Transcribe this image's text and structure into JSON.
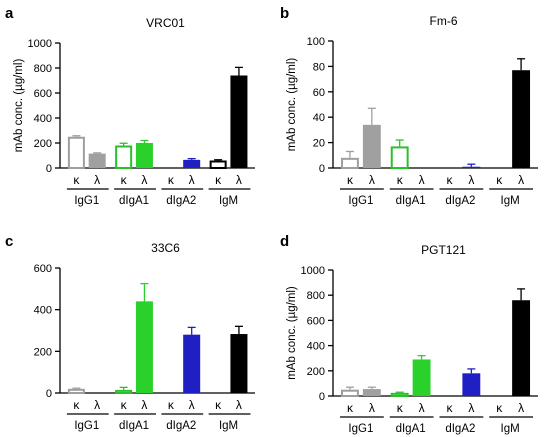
{
  "chart_data": [
    {
      "type": "bar",
      "panel_label": "a",
      "title": "VRC01",
      "ylabel": "mAb conc. (µg/ml)",
      "ylim": [
        0,
        1000
      ],
      "yticks": [
        0,
        200,
        400,
        600,
        800,
        1000
      ],
      "groups": [
        {
          "label": "IgG1",
          "bars": [
            {
              "chain": "κ",
              "value": 250,
              "error": 8,
              "style": "open",
              "color": "#9e9e9e"
            },
            {
              "chain": "λ",
              "value": 115,
              "error": 6,
              "style": "filled",
              "color": "#a0a0a0"
            }
          ]
        },
        {
          "label": "dIgA1",
          "bars": [
            {
              "chain": "κ",
              "value": 180,
              "error": 18,
              "style": "open",
              "color": "#2bbf2b"
            },
            {
              "chain": "λ",
              "value": 200,
              "error": 20,
              "style": "filled",
              "color": "#2bd12b"
            }
          ]
        },
        {
          "label": "dIgA2",
          "bars": [
            {
              "chain": "κ",
              "value": 0,
              "error": 0,
              "style": "none",
              "color": "#1f1fc4"
            },
            {
              "chain": "λ",
              "value": 65,
              "error": 10,
              "style": "filled",
              "color": "#1f1fc4"
            }
          ]
        },
        {
          "label": "IgM",
          "bars": [
            {
              "chain": "κ",
              "value": 60,
              "error": 6,
              "style": "open",
              "color": "#000000"
            },
            {
              "chain": "λ",
              "value": 740,
              "error": 65,
              "style": "filled",
              "color": "#000000"
            }
          ]
        }
      ]
    },
    {
      "type": "bar",
      "panel_label": "b",
      "title": "Fm-6",
      "ylabel": "mAb conc. (µg/ml)",
      "ylim": [
        0,
        100
      ],
      "yticks": [
        0,
        20,
        40,
        60,
        80,
        100
      ],
      "groups": [
        {
          "label": "IgG1",
          "bars": [
            {
              "chain": "κ",
              "value": 8,
              "error": 5,
              "style": "open",
              "color": "#9e9e9e"
            },
            {
              "chain": "λ",
              "value": 34,
              "error": 13,
              "style": "filled",
              "color": "#a0a0a0"
            }
          ]
        },
        {
          "label": "dIgA1",
          "bars": [
            {
              "chain": "κ",
              "value": 17,
              "error": 5,
              "style": "open",
              "color": "#2bbf2b"
            },
            {
              "chain": "λ",
              "value": 0,
              "error": 0,
              "style": "none",
              "color": "#2bd12b"
            }
          ]
        },
        {
          "label": "dIgA2",
          "bars": [
            {
              "chain": "κ",
              "value": 0,
              "error": 0,
              "style": "none",
              "color": "#1f1fc4"
            },
            {
              "chain": "λ",
              "value": 1,
              "error": 2,
              "style": "filled",
              "color": "#1f1fc4"
            }
          ]
        },
        {
          "label": "IgM",
          "bars": [
            {
              "chain": "κ",
              "value": 0,
              "error": 0,
              "style": "none",
              "color": "#000000"
            },
            {
              "chain": "λ",
              "value": 77,
              "error": 9,
              "style": "filled",
              "color": "#000000"
            }
          ]
        }
      ]
    },
    {
      "type": "bar",
      "panel_label": "c",
      "title": "33C6",
      "ylabel": "",
      "ylim": [
        0,
        600
      ],
      "yticks": [
        0,
        200,
        400,
        600
      ],
      "groups": [
        {
          "label": "IgG1",
          "bars": [
            {
              "chain": "κ",
              "value": 20,
              "error": 3,
              "style": "open",
              "color": "#9e9e9e"
            },
            {
              "chain": "λ",
              "value": 0,
              "error": 0,
              "style": "none",
              "color": "#a0a0a0"
            }
          ]
        },
        {
          "label": "dIgA1",
          "bars": [
            {
              "chain": "κ",
              "value": 15,
              "error": 12,
              "style": "open",
              "color": "#2bbf2b"
            },
            {
              "chain": "λ",
              "value": 440,
              "error": 85,
              "style": "filled",
              "color": "#2bd12b"
            }
          ]
        },
        {
          "label": "dIgA2",
          "bars": [
            {
              "chain": "κ",
              "value": 0,
              "error": 0,
              "style": "none",
              "color": "#1f1fc4"
            },
            {
              "chain": "λ",
              "value": 280,
              "error": 35,
              "style": "filled",
              "color": "#1f1fc4"
            }
          ]
        },
        {
          "label": "IgM",
          "bars": [
            {
              "chain": "κ",
              "value": 0,
              "error": 0,
              "style": "none",
              "color": "#000000"
            },
            {
              "chain": "λ",
              "value": 283,
              "error": 37,
              "style": "filled",
              "color": "#000000"
            }
          ]
        }
      ]
    },
    {
      "type": "bar",
      "panel_label": "d",
      "title": "PGT121",
      "ylabel": "mAb conc. (µg/ml)",
      "ylim": [
        0,
        1000
      ],
      "yticks": [
        0,
        200,
        400,
        600,
        800,
        1000
      ],
      "groups": [
        {
          "label": "IgG1",
          "bars": [
            {
              "chain": "κ",
              "value": 50,
              "error": 20,
              "style": "open",
              "color": "#9e9e9e"
            },
            {
              "chain": "λ",
              "value": 55,
              "error": 15,
              "style": "filled",
              "color": "#a0a0a0"
            }
          ]
        },
        {
          "label": "dIgA1",
          "bars": [
            {
              "chain": "κ",
              "value": 25,
              "error": 5,
              "style": "open",
              "color": "#2bbf2b"
            },
            {
              "chain": "λ",
              "value": 290,
              "error": 30,
              "style": "filled",
              "color": "#2bd12b"
            }
          ]
        },
        {
          "label": "dIgA2",
          "bars": [
            {
              "chain": "κ",
              "value": 0,
              "error": 0,
              "style": "none",
              "color": "#1f1fc4"
            },
            {
              "chain": "λ",
              "value": 180,
              "error": 35,
              "style": "filled",
              "color": "#1f1fc4"
            }
          ]
        },
        {
          "label": "IgM",
          "bars": [
            {
              "chain": "κ",
              "value": 0,
              "error": 0,
              "style": "none",
              "color": "#000000"
            },
            {
              "chain": "λ",
              "value": 760,
              "error": 90,
              "style": "filled",
              "color": "#000000"
            }
          ]
        }
      ]
    }
  ]
}
